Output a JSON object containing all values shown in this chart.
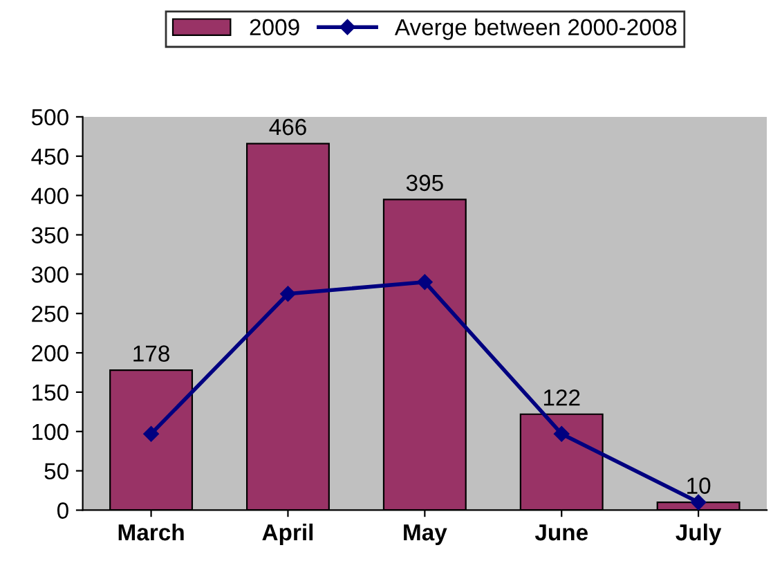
{
  "chart_data": {
    "type": "bar",
    "categories": [
      "March",
      "April",
      "May",
      "June",
      "July"
    ],
    "series": [
      {
        "name": "2009",
        "color": "#993366",
        "values": [
          178,
          466,
          395,
          122,
          10
        ],
        "value_labels": [
          "178",
          "466",
          "395",
          "122",
          "10"
        ]
      },
      {
        "name": "Averge between 2000-2008",
        "type": "line",
        "color": "#000080",
        "values": [
          97,
          275,
          290,
          97,
          10
        ],
        "marker": "diamond"
      }
    ],
    "ylim": [
      0,
      500
    ],
    "yticks": [
      0,
      50,
      100,
      150,
      200,
      250,
      300,
      350,
      400,
      450,
      500
    ],
    "grid": false,
    "legend": "top"
  }
}
